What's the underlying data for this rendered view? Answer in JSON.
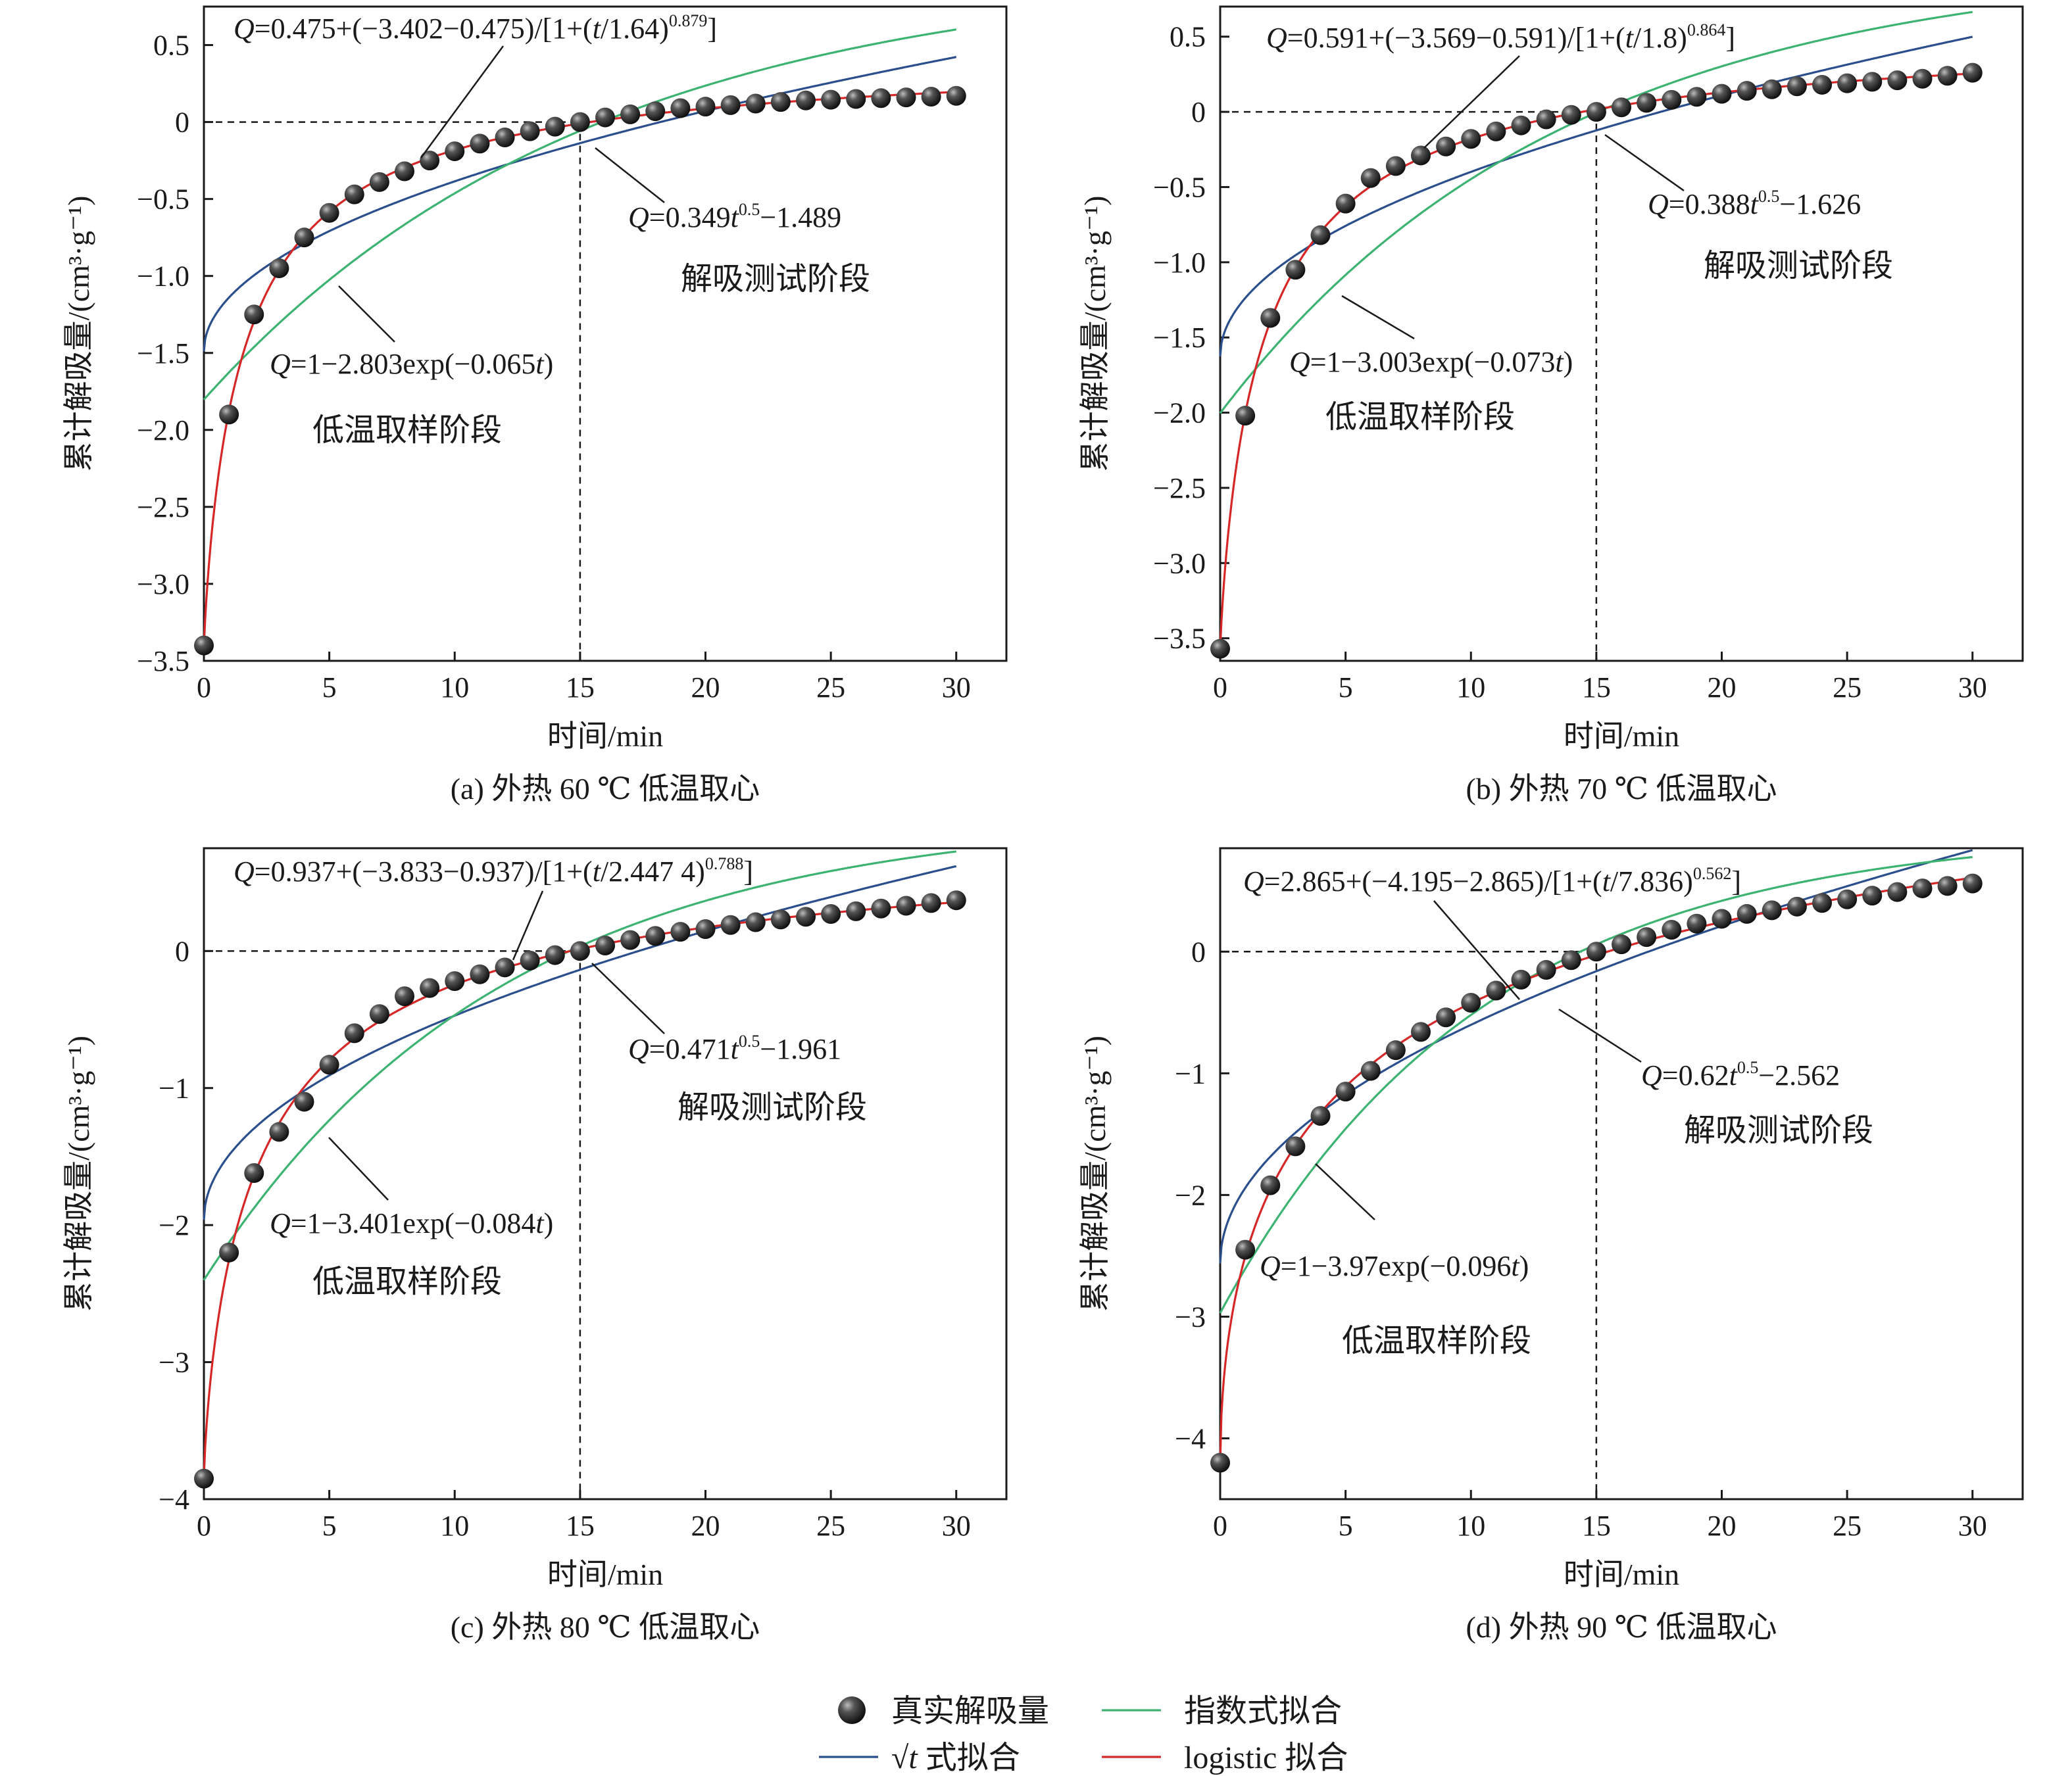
{
  "colors": {
    "sqrt_fit": "#2b4f8c",
    "exp_fit": "#3cb371",
    "logistic_fit": "#d62728",
    "points": "#1f1f1f"
  },
  "legend": {
    "points": "真实解吸量",
    "exp": "指数式拟合",
    "sqrt_symbol": "√",
    "sqrt_var": "t",
    "sqrt_suffix": " 式拟合",
    "logistic": "logistic 拟合"
  },
  "chart_data": [
    {
      "type": "line",
      "panel": "a",
      "caption": "(a) 外热 60 ℃ 低温取心",
      "xlabel": "时间/min",
      "ylabel": "累计解吸量/(cm³·g⁻¹)",
      "xlim": [
        0,
        32
      ],
      "ylim": [
        -3.5,
        0.75
      ],
      "xticks": [
        0,
        5,
        10,
        15,
        20,
        25,
        30
      ],
      "yticks": [
        -3.5,
        -3.0,
        -2.5,
        -2.0,
        -1.5,
        -1.0,
        -0.5,
        0,
        0.5
      ],
      "ytick_labels": [
        "−3.5",
        "−3.0",
        "−2.5",
        "−2.0",
        "−1.5",
        "−1.0",
        "−0.5",
        "0",
        "0.5"
      ],
      "xtick_labels": [
        "0",
        "5",
        "10",
        "15",
        "20",
        "25",
        "30"
      ],
      "x": [
        0,
        1,
        2,
        3,
        4,
        5,
        6,
        7,
        8,
        9,
        10,
        11,
        12,
        13,
        14,
        15,
        16,
        17,
        18,
        19,
        20,
        21,
        22,
        23,
        24,
        25,
        26,
        27,
        28,
        29,
        30
      ],
      "y": [
        -3.4,
        -1.9,
        -1.25,
        -0.95,
        -0.75,
        -0.59,
        -0.47,
        -0.39,
        -0.32,
        -0.25,
        -0.19,
        -0.14,
        -0.1,
        -0.06,
        -0.03,
        0.0,
        0.03,
        0.05,
        0.07,
        0.09,
        0.1,
        0.11,
        0.12,
        0.13,
        0.14,
        0.145,
        0.15,
        0.155,
        0.16,
        0.165,
        0.17
      ],
      "params": {
        "logistic": {
          "a": 0.475,
          "b": -3.402,
          "t0": 1.64,
          "p": 0.879
        },
        "sqrt": {
          "k": 0.349,
          "c": -1.489
        },
        "exp": {
          "A": 2.803,
          "k": 0.065
        }
      },
      "eq_logistic": {
        "q": "Q",
        "mid": "=0.475+(−3.402−0.475)/[1+(",
        "t": "t",
        "rest": "/1.64)",
        "sup": "0.879",
        "end": "]"
      },
      "eq_sqrt": {
        "q": "Q",
        "mid": "=0.349",
        "t": "t",
        "sup": "0.5",
        "end": "−1.489"
      },
      "eq_exp": {
        "q": "Q",
        "mid": "=1−2.803exp(−0.065",
        "t": "t",
        "end": ")"
      },
      "label_test": "解吸测试阶段",
      "label_sample": "低温取样阶段"
    },
    {
      "type": "line",
      "panel": "b",
      "caption": "(b) 外热 70 ℃ 低温取心",
      "xlabel": "时间/min",
      "ylabel": "累计解吸量/(cm³·g⁻¹)",
      "xlim": [
        0,
        32
      ],
      "ylim": [
        -3.65,
        0.7
      ],
      "xticks": [
        0,
        5,
        10,
        15,
        20,
        25,
        30
      ],
      "yticks": [
        -3.5,
        -3.0,
        -2.5,
        -2.0,
        -1.5,
        -1.0,
        -0.5,
        0,
        0.5
      ],
      "ytick_labels": [
        "−3.5",
        "−3.0",
        "−2.5",
        "−2.0",
        "−1.5",
        "−1.0",
        "−0.5",
        "0",
        "0.5"
      ],
      "xtick_labels": [
        "0",
        "5",
        "10",
        "15",
        "20",
        "25",
        "30"
      ],
      "x": [
        0,
        1,
        2,
        3,
        4,
        5,
        6,
        7,
        8,
        9,
        10,
        11,
        12,
        13,
        14,
        15,
        16,
        17,
        18,
        19,
        20,
        21,
        22,
        23,
        24,
        25,
        26,
        27,
        28,
        29,
        30
      ],
      "y": [
        -3.57,
        -2.02,
        -1.37,
        -1.05,
        -0.82,
        -0.61,
        -0.44,
        -0.36,
        -0.29,
        -0.23,
        -0.18,
        -0.13,
        -0.09,
        -0.05,
        -0.02,
        0.0,
        0.03,
        0.06,
        0.08,
        0.1,
        0.12,
        0.14,
        0.15,
        0.17,
        0.18,
        0.19,
        0.2,
        0.21,
        0.22,
        0.24,
        0.26
      ],
      "params": {
        "logistic": {
          "a": 0.591,
          "b": -3.569,
          "t0": 1.8,
          "p": 0.864
        },
        "sqrt": {
          "k": 0.388,
          "c": -1.626
        },
        "exp": {
          "A": 3.003,
          "k": 0.073
        }
      },
      "eq_logistic": {
        "q": "Q",
        "mid": "=0.591+(−3.569−0.591)/[1+(",
        "t": "t",
        "rest": "/1.8)",
        "sup": "0.864",
        "end": "]"
      },
      "eq_sqrt": {
        "q": "Q",
        "mid": "=0.388",
        "t": "t",
        "sup": "0.5",
        "end": "−1.626"
      },
      "eq_exp": {
        "q": "Q",
        "mid": "=1−3.003exp(−0.073",
        "t": "t",
        "end": ")"
      },
      "label_test": "解吸测试阶段",
      "label_sample": "低温取样阶段"
    },
    {
      "type": "line",
      "panel": "c",
      "caption": "(c) 外热 80 ℃ 低温取心",
      "xlabel": "时间/min",
      "ylabel": "累计解吸量/(cm³·g⁻¹)",
      "xlim": [
        0,
        32
      ],
      "ylim": [
        -4.0,
        0.75
      ],
      "xticks": [
        0,
        5,
        10,
        15,
        20,
        25,
        30
      ],
      "yticks": [
        -4,
        -3,
        -2,
        -1,
        0
      ],
      "ytick_labels": [
        "−4",
        "−3",
        "−2",
        "−1",
        "0"
      ],
      "xtick_labels": [
        "0",
        "5",
        "10",
        "15",
        "20",
        "25",
        "30"
      ],
      "x": [
        0,
        1,
        2,
        3,
        4,
        5,
        6,
        7,
        8,
        9,
        10,
        11,
        12,
        13,
        14,
        15,
        16,
        17,
        18,
        19,
        20,
        21,
        22,
        23,
        24,
        25,
        26,
        27,
        28,
        29,
        30
      ],
      "y": [
        -3.85,
        -2.2,
        -1.62,
        -1.32,
        -1.1,
        -0.83,
        -0.6,
        -0.46,
        -0.33,
        -0.27,
        -0.22,
        -0.17,
        -0.12,
        -0.07,
        -0.03,
        0.0,
        0.04,
        0.08,
        0.11,
        0.14,
        0.16,
        0.19,
        0.21,
        0.23,
        0.25,
        0.27,
        0.29,
        0.31,
        0.33,
        0.35,
        0.37
      ],
      "params": {
        "logistic": {
          "a": 0.937,
          "b": -3.833,
          "t0": 2.4474,
          "p": 0.788
        },
        "sqrt": {
          "k": 0.471,
          "c": -1.961
        },
        "exp": {
          "A": 3.401,
          "k": 0.084
        }
      },
      "eq_logistic": {
        "q": "Q",
        "mid": "=0.937+(−3.833−0.937)/[1+(",
        "t": "t",
        "rest": "/2.447 4)",
        "sup": "0.788",
        "end": "]"
      },
      "eq_sqrt": {
        "q": "Q",
        "mid": "=0.471",
        "t": "t",
        "sup": "0.5",
        "end": "−1.961"
      },
      "eq_exp": {
        "q": "Q",
        "mid": "=1−3.401exp(−0.084",
        "t": "t",
        "end": ")"
      },
      "label_test": "解吸测试阶段",
      "label_sample": "低温取样阶段"
    },
    {
      "type": "line",
      "panel": "d",
      "caption": "(d) 外热 90 ℃ 低温取心",
      "xlabel": "时间/min",
      "ylabel": "累计解吸量/(cm³·g⁻¹)",
      "xlim": [
        0,
        32
      ],
      "ylim": [
        -4.5,
        0.85
      ],
      "xticks": [
        0,
        5,
        10,
        15,
        20,
        25,
        30
      ],
      "yticks": [
        -4,
        -3,
        -2,
        -1,
        0
      ],
      "ytick_labels": [
        "−4",
        "−3",
        "−2",
        "−1",
        "0"
      ],
      "xtick_labels": [
        "0",
        "5",
        "10",
        "15",
        "20",
        "25",
        "30"
      ],
      "x": [
        0,
        1,
        2,
        3,
        4,
        5,
        6,
        7,
        8,
        9,
        10,
        11,
        12,
        13,
        14,
        15,
        16,
        17,
        18,
        19,
        20,
        21,
        22,
        23,
        24,
        25,
        26,
        27,
        28,
        29,
        30
      ],
      "y": [
        -4.2,
        -2.45,
        -1.92,
        -1.6,
        -1.35,
        -1.15,
        -0.98,
        -0.81,
        -0.66,
        -0.54,
        -0.42,
        -0.32,
        -0.23,
        -0.15,
        -0.07,
        0.0,
        0.06,
        0.12,
        0.18,
        0.23,
        0.27,
        0.31,
        0.34,
        0.37,
        0.4,
        0.43,
        0.46,
        0.49,
        0.52,
        0.54,
        0.56
      ],
      "params": {
        "logistic": {
          "a": 2.865,
          "b": -4.195,
          "t0": 7.836,
          "p": 0.562
        },
        "sqrt": {
          "k": 0.62,
          "c": -2.562
        },
        "exp": {
          "A": 3.97,
          "k": 0.096
        }
      },
      "eq_logistic": {
        "q": "Q",
        "mid": "=2.865+(−4.195−2.865)/[1+(",
        "t": "t",
        "rest": "/7.836)",
        "sup": "0.562",
        "end": "]"
      },
      "eq_sqrt": {
        "q": "Q",
        "mid": "=0.62",
        "t": "t",
        "sup": "0.5",
        "end": "−2.562"
      },
      "eq_exp": {
        "q": "Q",
        "mid": "=1−3.97exp(−0.096",
        "t": "t",
        "end": ")"
      },
      "label_test": "解吸测试阶段",
      "label_sample": "低温取样阶段"
    }
  ]
}
